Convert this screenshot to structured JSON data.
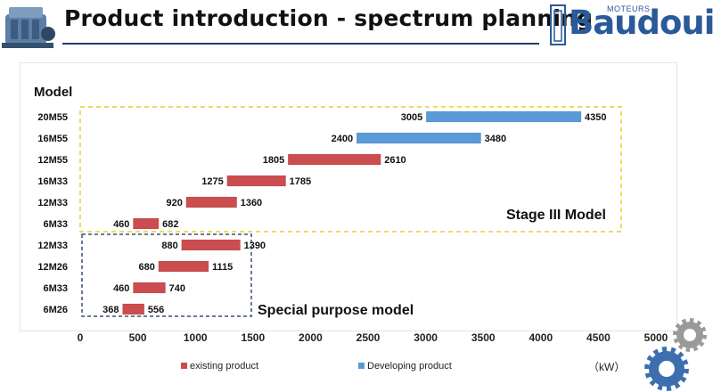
{
  "header": {
    "title": "Product introduction - spectrum planning",
    "logo_text": "Baudouin",
    "logo_small": "MOTEURS"
  },
  "colors": {
    "existing": "#cc4d4f",
    "developing": "#5b9ad8",
    "stage3_box": "#e8cf2e",
    "special_box": "#3a4f78",
    "title_rule": "#1f3d6e",
    "gear_grey": "#9a9a9a",
    "gear_blue": "#3d6fae"
  },
  "chart_data": {
    "type": "bar",
    "orientation": "horizontal-range",
    "ylabel": "Model",
    "xlabel": "（kW）",
    "xlim": [
      0,
      5000
    ],
    "xticks": [
      0,
      500,
      1000,
      1500,
      2000,
      2500,
      3000,
      3500,
      4000,
      4500,
      5000
    ],
    "categories": [
      "20M55",
      "16M55",
      "12M55",
      "16M33",
      "12M33",
      "6M33",
      "12M33",
      "12M26",
      "6M33",
      "6M26"
    ],
    "bars": [
      {
        "model": "20M55",
        "start": 3005,
        "end": 4350,
        "series": "Developing product"
      },
      {
        "model": "16M55",
        "start": 2400,
        "end": 3480,
        "series": "Developing product"
      },
      {
        "model": "12M55",
        "start": 1805,
        "end": 2610,
        "series": "existing product"
      },
      {
        "model": "16M33",
        "start": 1275,
        "end": 1785,
        "series": "existing product"
      },
      {
        "model": "12M33",
        "start": 920,
        "end": 1360,
        "series": "existing product"
      },
      {
        "model": "6M33",
        "start": 460,
        "end": 682,
        "series": "existing product"
      },
      {
        "model": "12M33",
        "start": 880,
        "end": 1390,
        "series": "existing product"
      },
      {
        "model": "12M26",
        "start": 680,
        "end": 1115,
        "series": "existing product"
      },
      {
        "model": "6M33",
        "start": 460,
        "end": 740,
        "series": "existing product"
      },
      {
        "model": "6M26",
        "start": 368,
        "end": 556,
        "series": "existing product"
      }
    ],
    "series": [
      {
        "name": "existing product"
      },
      {
        "name": "Developing product"
      }
    ],
    "annotations": {
      "stage3": "Stage III Model",
      "special": "Special purpose model"
    },
    "legend_position": "bottom",
    "grid": false
  }
}
